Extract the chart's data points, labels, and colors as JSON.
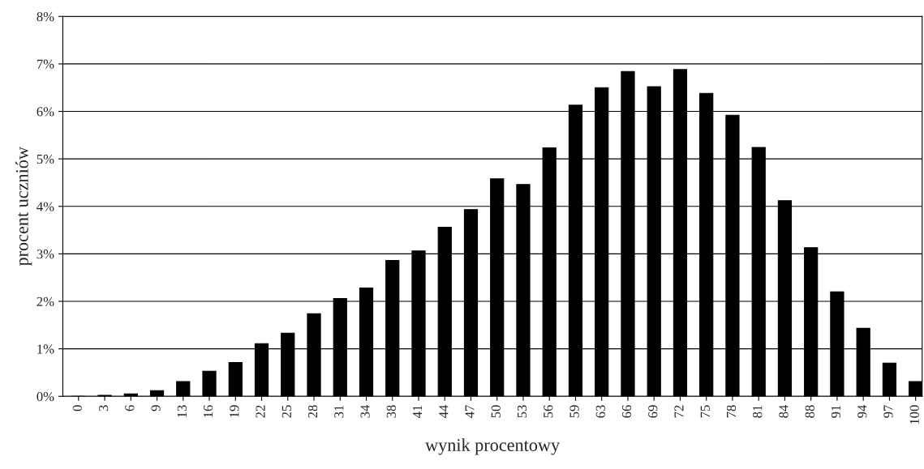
{
  "chart_data": {
    "type": "bar",
    "xlabel": "wynik procentowy",
    "ylabel": "procent uczniów",
    "categories": [
      "0",
      "3",
      "6",
      "9",
      "13",
      "16",
      "19",
      "22",
      "25",
      "28",
      "31",
      "34",
      "38",
      "41",
      "44",
      "47",
      "50",
      "53",
      "56",
      "59",
      "63",
      "66",
      "69",
      "72",
      "75",
      "78",
      "81",
      "84",
      "88",
      "91",
      "94",
      "97",
      "100"
    ],
    "values": [
      0,
      0.02,
      0.05,
      0.12,
      0.31,
      0.53,
      0.71,
      1.11,
      1.33,
      1.74,
      2.06,
      2.28,
      2.86,
      3.06,
      3.56,
      3.93,
      4.58,
      4.46,
      5.23,
      6.13,
      6.5,
      6.84,
      6.52,
      6.88,
      6.38,
      5.92,
      5.24,
      4.12,
      3.13,
      2.2,
      1.43,
      0.7,
      0.31
    ],
    "color": "#000000",
    "ylim": [
      0,
      8
    ],
    "yticks": [
      {
        "value": 0,
        "label": "0%"
      },
      {
        "value": 1,
        "label": "1%"
      },
      {
        "value": 2,
        "label": "2%"
      },
      {
        "value": 3,
        "label": "3%"
      },
      {
        "value": 4,
        "label": "4%"
      },
      {
        "value": 5,
        "label": "5%"
      },
      {
        "value": 6,
        "label": "6%"
      },
      {
        "value": 7,
        "label": "7%"
      },
      {
        "value": 8,
        "label": "8%"
      }
    ],
    "grid": "y"
  }
}
